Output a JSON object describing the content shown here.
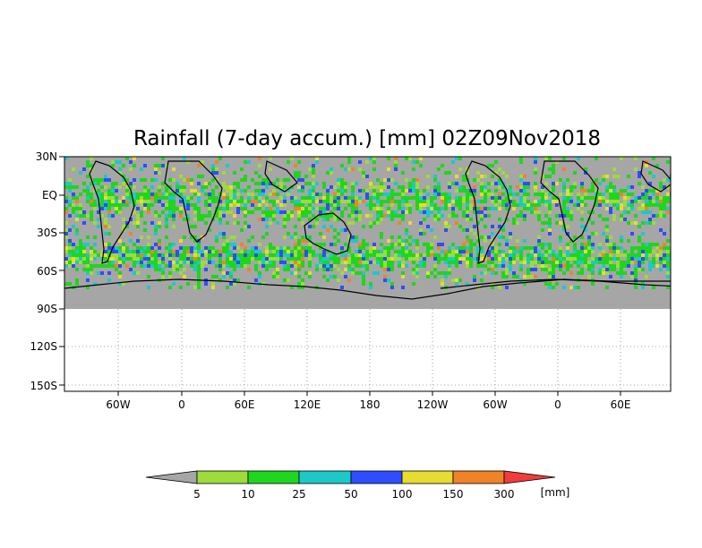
{
  "title": "Rainfall (7-day accum.) [mm] 02Z09Nov2018",
  "lat_labels": [
    "30N",
    "EQ",
    "30S",
    "60S",
    "90S",
    "120S",
    "150S"
  ],
  "lon_labels": [
    "60W",
    "0",
    "60E",
    "120E",
    "180",
    "120W",
    "60W",
    "0",
    "60E"
  ],
  "legend": {
    "tick_labels": [
      "5",
      "10",
      "25",
      "50",
      "100",
      "150",
      "300"
    ],
    "unit": "[mm]",
    "colors": [
      "#a6a6a6",
      "#9ddc3a",
      "#1ed61e",
      "#1ec8c8",
      "#2e4dff",
      "#e6dc32",
      "#f08228",
      "#f03c3c"
    ]
  },
  "map_colors": {
    "land_nodata": "#a6a6a6",
    "coastline": "#000000"
  }
}
